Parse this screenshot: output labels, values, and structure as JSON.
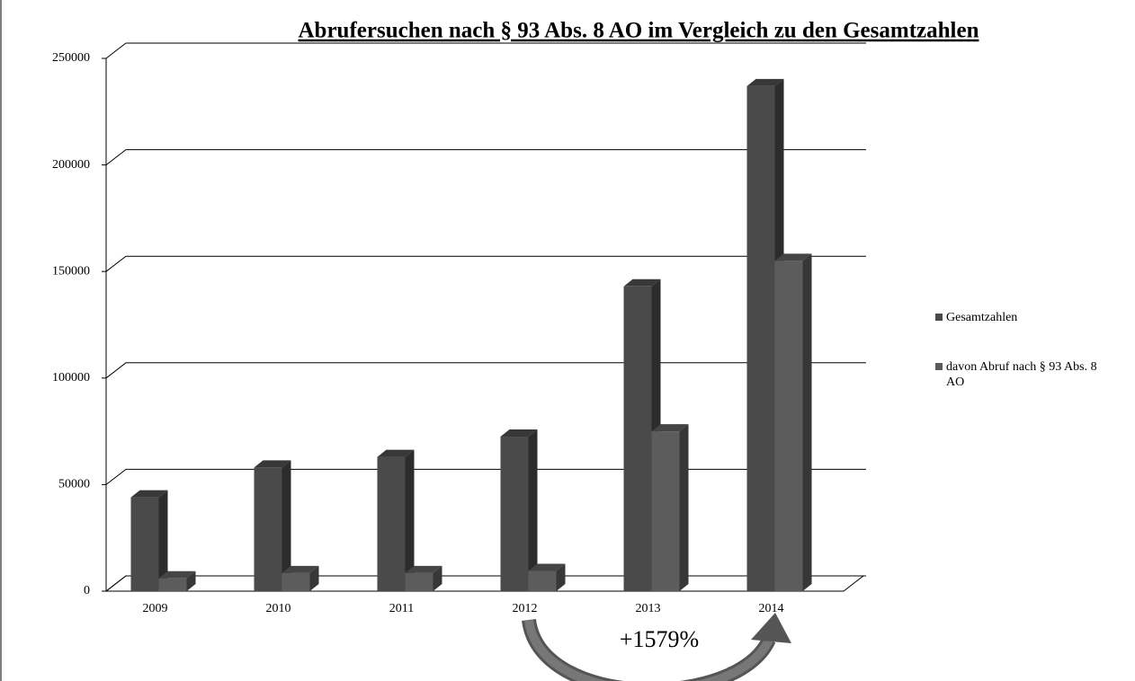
{
  "chart_data": {
    "type": "bar3d",
    "title": "Abrufersuchen nach § 93 Abs. 8 AO im Vergleich zu den Gesamtzahlen",
    "categories": [
      "2009",
      "2010",
      "2011",
      "2012",
      "2013",
      "2014"
    ],
    "series": [
      {
        "name": "Gesamtzahlen",
        "color": "#4a4a4a",
        "values": [
          44000,
          58000,
          63000,
          72500,
          143000,
          237000
        ]
      },
      {
        "name": "davon Abruf nach § 93 Abs. 8 AO",
        "color": "#5c5c5c",
        "values": [
          6000,
          8500,
          8500,
          9500,
          75000,
          155000
        ]
      }
    ],
    "ylim": [
      0,
      250000
    ],
    "yticks": [
      0,
      50000,
      100000,
      150000,
      200000,
      250000
    ],
    "grid": true,
    "legend": "right",
    "annotation": "+1579%"
  }
}
